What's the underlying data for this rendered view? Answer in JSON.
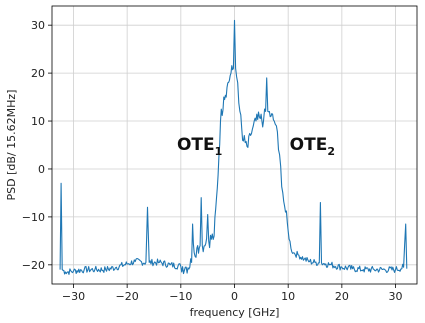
{
  "chart_data": {
    "type": "line",
    "xlabel": "frequency [GHz]",
    "ylabel": "PSD [dB/ 15.62MHz]",
    "xlim": [
      -34,
      34
    ],
    "ylim": [
      -24,
      34
    ],
    "x_ticks": [
      -30,
      -20,
      -10,
      0,
      10,
      20,
      30
    ],
    "y_ticks": [
      -20,
      -10,
      0,
      10,
      20,
      30
    ],
    "grid": true,
    "line_color": "#1f77b4",
    "annotations": [
      {
        "base": "OTE",
        "sub": "1",
        "x": -6.5,
        "y": 4
      },
      {
        "base": "OTE",
        "sub": "2",
        "x": 14.5,
        "y": 4
      }
    ],
    "series": [
      {
        "values": [
          [
            -32.5,
            -21.0
          ],
          [
            -32.3,
            -3.0
          ],
          [
            -32.1,
            -21.0
          ],
          [
            -31.5,
            -21.5
          ],
          [
            -30,
            -21.3
          ],
          [
            -28,
            -21.0
          ],
          [
            -26,
            -21.0
          ],
          [
            -24,
            -21.0
          ],
          [
            -22,
            -20.5
          ],
          [
            -20,
            -19.8
          ],
          [
            -18.5,
            -19.3
          ],
          [
            -16.5,
            -19.5
          ],
          [
            -16.2,
            -8.0
          ],
          [
            -15.9,
            -19.5
          ],
          [
            -14,
            -19.5
          ],
          [
            -12,
            -20.0
          ],
          [
            -10,
            -20.3
          ],
          [
            -9,
            -20.5
          ],
          [
            -8.0,
            -19.5
          ],
          [
            -7.8,
            -11.5
          ],
          [
            -7.5,
            -17.5
          ],
          [
            -7,
            -16.5
          ],
          [
            -6.4,
            -16.0
          ],
          [
            -6.2,
            -6.0
          ],
          [
            -6.0,
            -16.0
          ],
          [
            -5.5,
            -16.0
          ],
          [
            -5.2,
            -14.5
          ],
          [
            -5.0,
            -9.5
          ],
          [
            -4.8,
            -15.0
          ],
          [
            -3.8,
            -14.0
          ],
          [
            -3.2,
            -4.0
          ],
          [
            -2.6,
            10.0
          ],
          [
            -2.0,
            15.0
          ],
          [
            -1.4,
            17.0
          ],
          [
            -0.8,
            19.5
          ],
          [
            -0.2,
            21.0
          ],
          [
            0.0,
            31.0
          ],
          [
            0.2,
            21.0
          ],
          [
            0.6,
            18.0
          ],
          [
            1.0,
            12.0
          ],
          [
            1.5,
            6.0
          ],
          [
            2.0,
            5.5
          ],
          [
            2.5,
            4.5
          ],
          [
            3.0,
            7.0
          ],
          [
            3.5,
            9.0
          ],
          [
            4.0,
            10.0
          ],
          [
            4.8,
            10.5
          ],
          [
            5.4,
            10.0
          ],
          [
            5.8,
            12.0
          ],
          [
            6.0,
            19.0
          ],
          [
            6.2,
            12.0
          ],
          [
            6.8,
            11.0
          ],
          [
            7.4,
            10.0
          ],
          [
            7.8,
            9.0
          ],
          [
            8.2,
            4.0
          ],
          [
            8.6,
            0.5
          ],
          [
            9.0,
            -5.0
          ],
          [
            9.5,
            -9.0
          ],
          [
            10.0,
            -13.0
          ],
          [
            10.5,
            -16.5
          ],
          [
            11,
            -17.5
          ],
          [
            12,
            -18.0
          ],
          [
            13,
            -18.8
          ],
          [
            14,
            -19.3
          ],
          [
            15,
            -19.5
          ],
          [
            15.8,
            -19.6
          ],
          [
            16.0,
            -7.0
          ],
          [
            16.2,
            -19.6
          ],
          [
            17,
            -19.8
          ],
          [
            18,
            -20.0
          ],
          [
            20,
            -20.5
          ],
          [
            22,
            -20.8
          ],
          [
            24,
            -21.0
          ],
          [
            26,
            -21.0
          ],
          [
            28,
            -21.0
          ],
          [
            30,
            -21.0
          ],
          [
            31.5,
            -20.5
          ],
          [
            31.9,
            -11.5
          ],
          [
            32.1,
            -20.8
          ]
        ]
      }
    ]
  }
}
